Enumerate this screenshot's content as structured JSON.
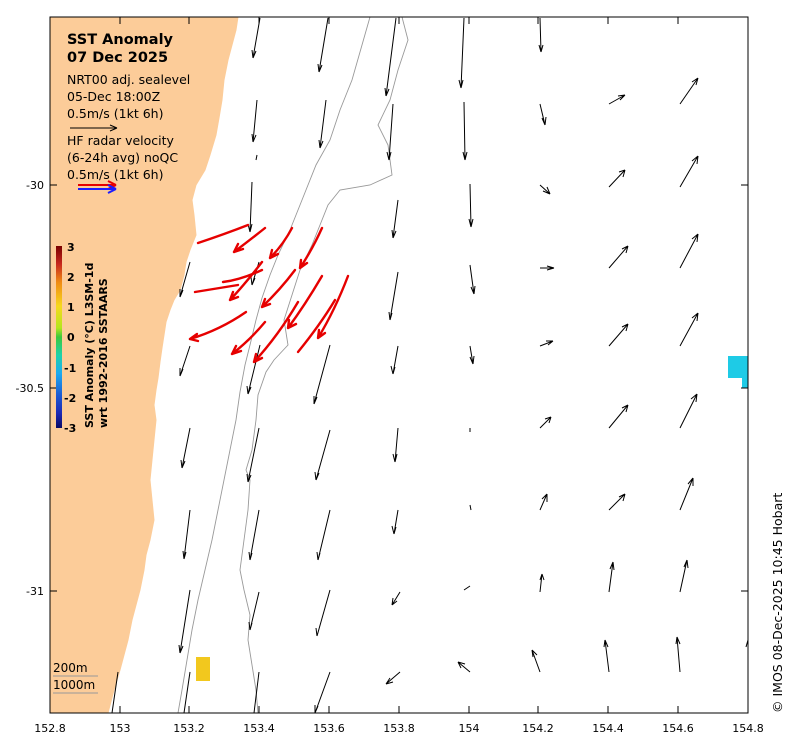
{
  "title": "SST Anomaly",
  "date": "07 Dec 2025",
  "legend": {
    "sealevel_line1": "NRT00 adj. sealevel",
    "sealevel_line2": "05-Dec 18:00Z",
    "sealevel_scale": "0.5m/s (1kt 6h)",
    "hf_line1": "HF radar velocity",
    "hf_line2": "(6-24h avg) noQC",
    "hf_scale": "0.5m/s (1kt 6h)"
  },
  "colorbar": {
    "label_line1": "SST Anomaly (°C) L3SM-1d",
    "label_line2": "wrt 1992-2016 SSTAARS",
    "ticks": [
      "3",
      "2",
      "1",
      "0",
      "-1",
      "-2",
      "-3"
    ]
  },
  "depth_labels": [
    "200m",
    "1000m"
  ],
  "copyright": "© IMOS 08-Dec-2025 10:45 Hobart",
  "axes": {
    "x_ticks": [
      "152.8",
      "153",
      "153.2",
      "153.4",
      "153.6",
      "153.8",
      "154",
      "154.2",
      "154.4",
      "154.6",
      "154.8"
    ],
    "y_ticks": [
      "-30",
      "-30.5",
      "-31"
    ]
  },
  "colors": {
    "land": "#fccc99",
    "hf_arrow": "#e60000",
    "legend_blue": "#1c1cff",
    "sst_yellow": "#f2c81e",
    "sst_cyan": "#1ecbe6"
  }
}
